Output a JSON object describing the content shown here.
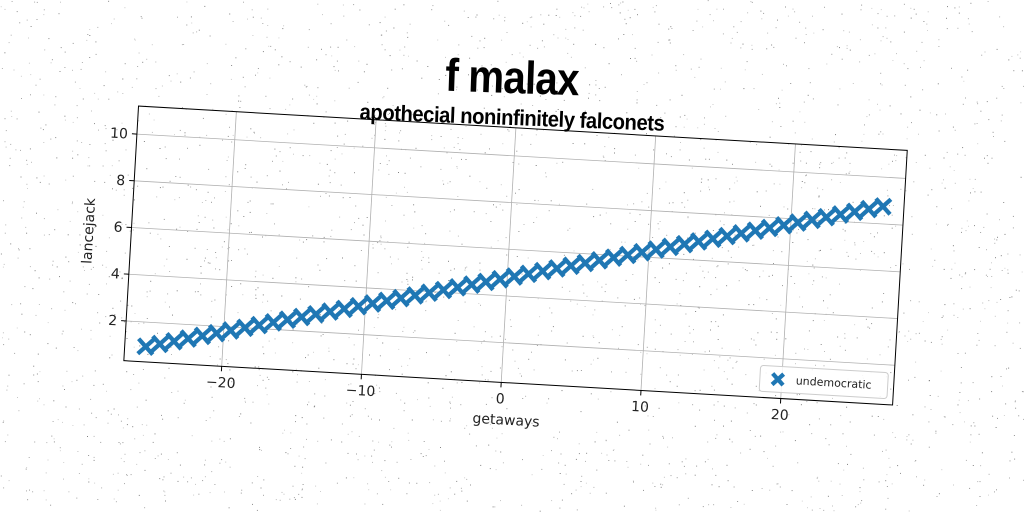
{
  "colors": {
    "series": "#1f77b4",
    "grid": "#b0b0b0",
    "axes": "#000000",
    "background": "#ffffff"
  },
  "chart_data": {
    "type": "scatter",
    "title": "f malax",
    "subtitle": "apothecial noninfinitely falconets",
    "xlabel": "getaways",
    "ylabel": "lancejack",
    "xlim": [
      -27,
      28
    ],
    "ylim": [
      0.3,
      11.2
    ],
    "xticks": [
      -20,
      -10,
      0,
      10,
      20
    ],
    "xtick_labels": [
      "−20",
      "−10",
      "0",
      "10",
      "20"
    ],
    "yticks": [
      2,
      4,
      6,
      8,
      10
    ],
    "ytick_labels": [
      "2",
      "4",
      "6",
      "8",
      "10"
    ],
    "grid": true,
    "legend_position": "bottom-right",
    "marker": "X",
    "series": [
      {
        "name": "undemocratic",
        "x": [
          -25.5,
          -24.5,
          -23.5,
          -22.5,
          -21.5,
          -20.5,
          -19.5,
          -18.5,
          -17.5,
          -16.5,
          -15.5,
          -14.5,
          -13.5,
          -12.5,
          -11.5,
          -10.5,
          -9.5,
          -8.5,
          -7.5,
          -6.5,
          -5.5,
          -4.5,
          -3.5,
          -2.5,
          -1.5,
          -0.5,
          0.5,
          1.5,
          2.5,
          3.5,
          4.5,
          5.5,
          6.5,
          7.5,
          8.5,
          9.5,
          10.5,
          11.5,
          12.5,
          13.5,
          14.5,
          15.5,
          16.5,
          17.5,
          18.5,
          19.5,
          20.5,
          21.5,
          22.5,
          23.5,
          24.5,
          25.5,
          26.5
        ],
        "y": [
          0.95,
          1.1,
          1.25,
          1.4,
          1.55,
          1.7,
          1.85,
          2.0,
          2.15,
          2.3,
          2.45,
          2.6,
          2.75,
          2.9,
          3.05,
          3.2,
          3.35,
          3.5,
          3.65,
          3.8,
          3.95,
          4.1,
          4.25,
          4.4,
          4.55,
          4.7,
          4.85,
          5.0,
          5.15,
          5.3,
          5.45,
          5.6,
          5.75,
          5.9,
          6.05,
          6.2,
          6.35,
          6.5,
          6.65,
          6.8,
          6.95,
          7.1,
          7.25,
          7.4,
          7.55,
          7.7,
          7.85,
          8.0,
          8.15,
          8.3,
          8.45,
          8.6,
          8.75
        ]
      }
    ]
  }
}
